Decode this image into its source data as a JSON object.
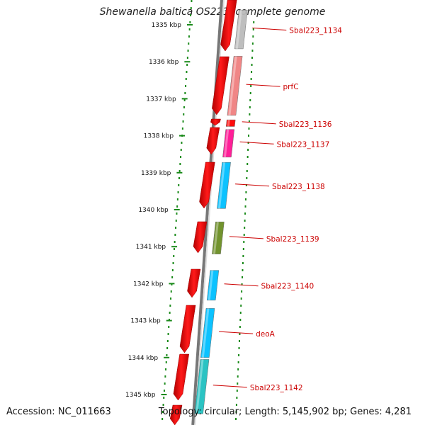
{
  "title": "Shewanella baltica OS223, complete genome",
  "accession": "Accession: NC_011663",
  "topology": "Topology: circular; Length: 5,145,902 bp; Genes: 4,281",
  "ticks": [
    {
      "kbp": 1335,
      "label": "1335 kbp"
    },
    {
      "kbp": 1336,
      "label": "1336 kbp"
    },
    {
      "kbp": 1337,
      "label": "1337 kbp"
    },
    {
      "kbp": 1338,
      "label": "1338 kbp"
    },
    {
      "kbp": 1339,
      "label": "1339 kbp"
    },
    {
      "kbp": 1340,
      "label": "1340 kbp"
    },
    {
      "kbp": 1341,
      "label": "1341 kbp"
    },
    {
      "kbp": 1342,
      "label": "1342 kbp"
    },
    {
      "kbp": 1343,
      "label": "1343 kbp"
    },
    {
      "kbp": 1344,
      "label": "1344 kbp"
    },
    {
      "kbp": 1345,
      "label": "1345 kbp"
    }
  ],
  "genes": [
    {
      "name": "Sbal223_1134",
      "start_kbp": 1334.6,
      "end_kbp": 1335.65,
      "color": "#bbbbbb"
    },
    {
      "name": "prfC",
      "start_kbp": 1335.85,
      "end_kbp": 1337.45,
      "color": "#f08080"
    },
    {
      "name": "Sbal223_1136",
      "start_kbp": 1337.57,
      "end_kbp": 1337.75,
      "color": "#ff0000"
    },
    {
      "name": "Sbal223_1137",
      "start_kbp": 1337.83,
      "end_kbp": 1338.58,
      "color": "#ff1493"
    },
    {
      "name": "Sbal223_1138",
      "start_kbp": 1338.72,
      "end_kbp": 1339.97,
      "color": "#00bfff"
    },
    {
      "name": "Sbal223_1139",
      "start_kbp": 1340.33,
      "end_kbp": 1341.2,
      "color": "#6b8e23"
    },
    {
      "name": "Sbal223_1140",
      "start_kbp": 1341.64,
      "end_kbp": 1342.45,
      "color": "#00bfff"
    },
    {
      "name": "deoA",
      "start_kbp": 1342.67,
      "end_kbp": 1344.0,
      "color": "#00bfff"
    },
    {
      "name": "Sbal223_1142",
      "start_kbp": 1344.05,
      "end_kbp": 1345.52,
      "color": "#20c0c0"
    }
  ]
}
